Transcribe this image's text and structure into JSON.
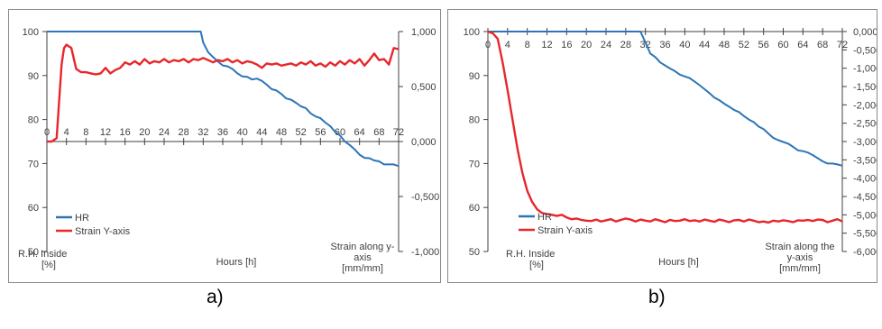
{
  "captions": {
    "a": "a)",
    "b": "b)"
  },
  "chart_data": [
    {
      "type": "line",
      "panel": "a",
      "xlabel": "Hours [h]",
      "ylabel_left": [
        "R.H. Inside",
        "[%]"
      ],
      "ylabel_right": [
        "Strain along y-",
        "axis",
        "[mm/mm]"
      ],
      "x_ticks": [
        "0",
        "4",
        "8",
        "12",
        "16",
        "20",
        "24",
        "28",
        "32",
        "36",
        "40",
        "44",
        "48",
        "52",
        "56",
        "60",
        "64",
        "68",
        "72"
      ],
      "x_range": [
        0,
        72
      ],
      "y_left_ticks": [
        "50",
        "60",
        "70",
        "80",
        "90",
        "100"
      ],
      "y_left_range": [
        50,
        100
      ],
      "y_right_ticks": [
        "-1,000",
        "-0,500",
        "0,000",
        "0,500",
        "1,000"
      ],
      "y_right_range": [
        -1.0,
        1.0
      ],
      "x_axis_at_right_value": 0.0,
      "grid": false,
      "legend_position": "bottom-left",
      "series": [
        {
          "name": "HR",
          "axis": "left",
          "color": "#2e75b6",
          "x": [
            0,
            31.5,
            32,
            33,
            34,
            35,
            36,
            37,
            38,
            39,
            40,
            41,
            42,
            43,
            44,
            45,
            46,
            47,
            48,
            49,
            50,
            51,
            52,
            53,
            54,
            55,
            56,
            57,
            58,
            59,
            60,
            61,
            62,
            63,
            64,
            65,
            66,
            67,
            68,
            69,
            70,
            71,
            72
          ],
          "y": [
            100,
            100,
            97.5,
            95.3,
            94.2,
            93.2,
            92.3,
            92.1,
            91.5,
            90.5,
            89.8,
            89.7,
            89.1,
            89.3,
            88.8,
            87.9,
            86.9,
            86.6,
            85.8,
            84.8,
            84.5,
            83.8,
            83.0,
            82.6,
            81.4,
            80.7,
            80.3,
            79.3,
            78.5,
            77.2,
            76.4,
            75.0,
            74.2,
            73.2,
            72.0,
            71.3,
            71.2,
            70.7,
            70.5,
            69.8,
            69.8,
            69.8,
            69.4
          ]
        },
        {
          "name": "Strain Y-axis",
          "axis": "right",
          "color": "#e8262b",
          "x": [
            0,
            1,
            2,
            3,
            3.5,
            4,
            5,
            6,
            7,
            8,
            9,
            10,
            11,
            12,
            13,
            14,
            15,
            16,
            17,
            18,
            19,
            20,
            21,
            22,
            23,
            24,
            25,
            26,
            27,
            28,
            29,
            30,
            31,
            32,
            33,
            34,
            35,
            36,
            37,
            38,
            39,
            40,
            41,
            42,
            43,
            44,
            45,
            46,
            47,
            48,
            49,
            50,
            51,
            52,
            53,
            54,
            55,
            56,
            57,
            58,
            59,
            60,
            61,
            62,
            63,
            64,
            65,
            66,
            67,
            68,
            69,
            70,
            71,
            72
          ],
          "y": [
            0.0,
            0.0,
            0.03,
            0.7,
            0.85,
            0.88,
            0.85,
            0.66,
            0.63,
            0.63,
            0.62,
            0.61,
            0.62,
            0.67,
            0.62,
            0.65,
            0.67,
            0.72,
            0.7,
            0.73,
            0.7,
            0.75,
            0.71,
            0.73,
            0.72,
            0.75,
            0.72,
            0.74,
            0.73,
            0.75,
            0.72,
            0.75,
            0.74,
            0.76,
            0.74,
            0.72,
            0.74,
            0.73,
            0.75,
            0.72,
            0.74,
            0.71,
            0.73,
            0.72,
            0.7,
            0.67,
            0.71,
            0.7,
            0.71,
            0.69,
            0.7,
            0.71,
            0.69,
            0.72,
            0.7,
            0.73,
            0.69,
            0.71,
            0.68,
            0.72,
            0.69,
            0.73,
            0.7,
            0.74,
            0.71,
            0.75,
            0.69,
            0.74,
            0.8,
            0.74,
            0.75,
            0.7,
            0.85,
            0.84
          ]
        }
      ],
      "legend": [
        "HR",
        "Strain Y-axis"
      ]
    },
    {
      "type": "line",
      "panel": "b",
      "xlabel": "Hours [h]",
      "ylabel_left": [
        "R.H. Inside",
        "[%]"
      ],
      "ylabel_right": [
        "Strain along the",
        "y-axis",
        "[mm/mm]"
      ],
      "x_ticks": [
        "0",
        "4",
        "8",
        "12",
        "16",
        "20",
        "24",
        "28",
        "32",
        "36",
        "40",
        "44",
        "48",
        "52",
        "56",
        "60",
        "64",
        "68",
        "72"
      ],
      "x_range": [
        0,
        72
      ],
      "y_left_ticks": [
        "50",
        "60",
        "70",
        "80",
        "90",
        "100"
      ],
      "y_left_range": [
        50,
        100
      ],
      "y_right_ticks": [
        "-6,000",
        "-5,500",
        "-5,000",
        "-4,500",
        "-4,000",
        "-3,500",
        "-3,000",
        "-2,500",
        "-2,000",
        "-1,500",
        "-1,000",
        "-0,500",
        "0,000"
      ],
      "y_right_range": [
        -6.0,
        0.0
      ],
      "x_axis_at_right_value": 0.0,
      "grid": false,
      "legend_position": "bottom-left",
      "series": [
        {
          "name": "HR",
          "axis": "left",
          "color": "#2e75b6",
          "x": [
            0,
            31,
            32,
            33,
            34,
            35,
            36,
            37,
            38,
            39,
            40,
            41,
            42,
            43,
            44,
            45,
            46,
            47,
            48,
            49,
            50,
            51,
            52,
            53,
            54,
            55,
            56,
            57,
            58,
            59,
            60,
            61,
            62,
            63,
            64,
            65,
            66,
            67,
            68,
            69,
            70,
            71,
            72
          ],
          "y": [
            100,
            100,
            97.5,
            95.0,
            94.2,
            93.0,
            92.3,
            91.6,
            91.0,
            90.2,
            89.8,
            89.4,
            88.6,
            87.8,
            86.9,
            86.0,
            85.0,
            84.4,
            83.6,
            82.9,
            82.2,
            81.7,
            80.8,
            80.0,
            79.4,
            78.4,
            77.8,
            76.8,
            75.8,
            75.3,
            74.9,
            74.5,
            73.8,
            73.0,
            72.8,
            72.5,
            71.9,
            71.2,
            70.5,
            70.0,
            70.0,
            69.8,
            69.5
          ]
        },
        {
          "name": "Strain Y-axis",
          "axis": "right",
          "color": "#e8262b",
          "x": [
            0,
            1,
            2,
            3,
            4,
            5,
            6,
            7,
            8,
            9,
            10,
            11,
            12,
            13,
            14,
            15,
            16,
            17,
            18,
            19,
            20,
            21,
            22,
            23,
            24,
            25,
            26,
            27,
            28,
            29,
            30,
            31,
            32,
            33,
            34,
            35,
            36,
            37,
            38,
            39,
            40,
            41,
            42,
            43,
            44,
            45,
            46,
            47,
            48,
            49,
            50,
            51,
            52,
            53,
            54,
            55,
            56,
            57,
            58,
            59,
            60,
            61,
            62,
            63,
            64,
            65,
            66,
            67,
            68,
            69,
            70,
            71,
            72
          ],
          "y": [
            0.0,
            -0.05,
            -0.2,
            -0.85,
            -1.6,
            -2.4,
            -3.2,
            -3.85,
            -4.35,
            -4.65,
            -4.85,
            -4.95,
            -4.98,
            -5.0,
            -5.03,
            -5.0,
            -5.07,
            -5.12,
            -5.1,
            -5.14,
            -5.16,
            -5.17,
            -5.13,
            -5.18,
            -5.15,
            -5.12,
            -5.18,
            -5.14,
            -5.1,
            -5.13,
            -5.18,
            -5.13,
            -5.16,
            -5.18,
            -5.12,
            -5.16,
            -5.2,
            -5.14,
            -5.17,
            -5.16,
            -5.12,
            -5.17,
            -5.15,
            -5.18,
            -5.13,
            -5.16,
            -5.19,
            -5.13,
            -5.16,
            -5.2,
            -5.15,
            -5.14,
            -5.18,
            -5.13,
            -5.16,
            -5.2,
            -5.18,
            -5.21,
            -5.16,
            -5.18,
            -5.15,
            -5.17,
            -5.2,
            -5.15,
            -5.16,
            -5.14,
            -5.17,
            -5.13,
            -5.14,
            -5.2,
            -5.16,
            -5.12,
            -5.18
          ]
        }
      ],
      "legend": [
        "HR",
        "Strain Y-axis"
      ]
    }
  ]
}
